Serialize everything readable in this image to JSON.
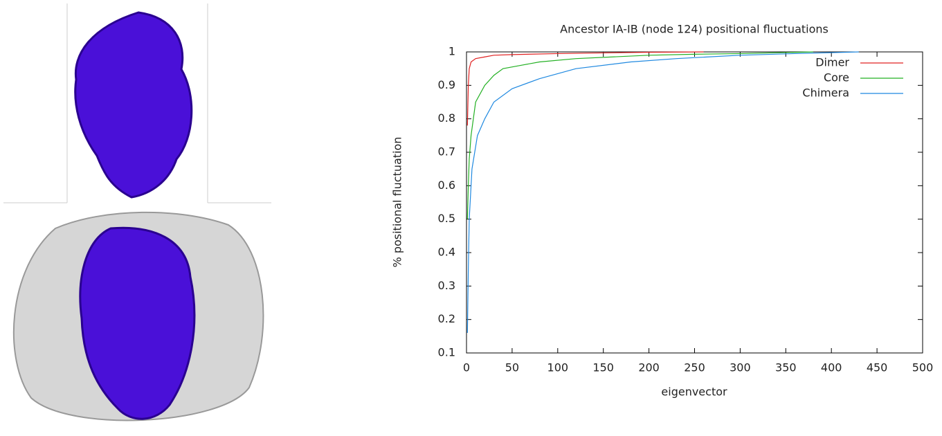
{
  "chart_data": {
    "type": "line",
    "title": "Ancestor IA-IB (node 124) positional fluctuations",
    "xlabel": "eigenvector",
    "ylabel": "% positional fluctuation",
    "xlim": [
      0,
      500
    ],
    "ylim": [
      0.1,
      1
    ],
    "xticks": [
      0,
      50,
      100,
      150,
      200,
      250,
      300,
      350,
      400,
      450,
      500
    ],
    "yticks": [
      0.1,
      0.2,
      0.3,
      0.4,
      0.5,
      0.6,
      0.7,
      0.8,
      0.9,
      1
    ],
    "grid": false,
    "legend": "top-right",
    "series": [
      {
        "name": "Dimer",
        "color": "#e02020",
        "x": [
          1,
          2,
          3,
          5,
          10,
          20,
          30,
          50,
          100,
          150,
          200,
          260
        ],
        "values": [
          0.78,
          0.9,
          0.95,
          0.97,
          0.98,
          0.985,
          0.99,
          0.992,
          0.995,
          0.997,
          0.999,
          1
        ]
      },
      {
        "name": "Core",
        "color": "#22b022",
        "x": [
          1,
          2,
          3,
          5,
          10,
          20,
          30,
          40,
          60,
          80,
          120,
          160,
          200,
          250,
          300,
          380
        ],
        "values": [
          0.5,
          0.6,
          0.68,
          0.75,
          0.85,
          0.9,
          0.93,
          0.95,
          0.96,
          0.97,
          0.98,
          0.985,
          0.99,
          0.993,
          0.995,
          1
        ]
      },
      {
        "name": "Chimera",
        "color": "#1e88e0",
        "x": [
          1,
          2,
          3,
          6,
          12,
          20,
          30,
          50,
          80,
          120,
          180,
          230,
          300,
          360,
          430
        ],
        "values": [
          0.16,
          0.35,
          0.5,
          0.65,
          0.75,
          0.8,
          0.85,
          0.89,
          0.92,
          0.95,
          0.97,
          0.98,
          0.99,
          0.995,
          1
        ]
      }
    ]
  }
}
